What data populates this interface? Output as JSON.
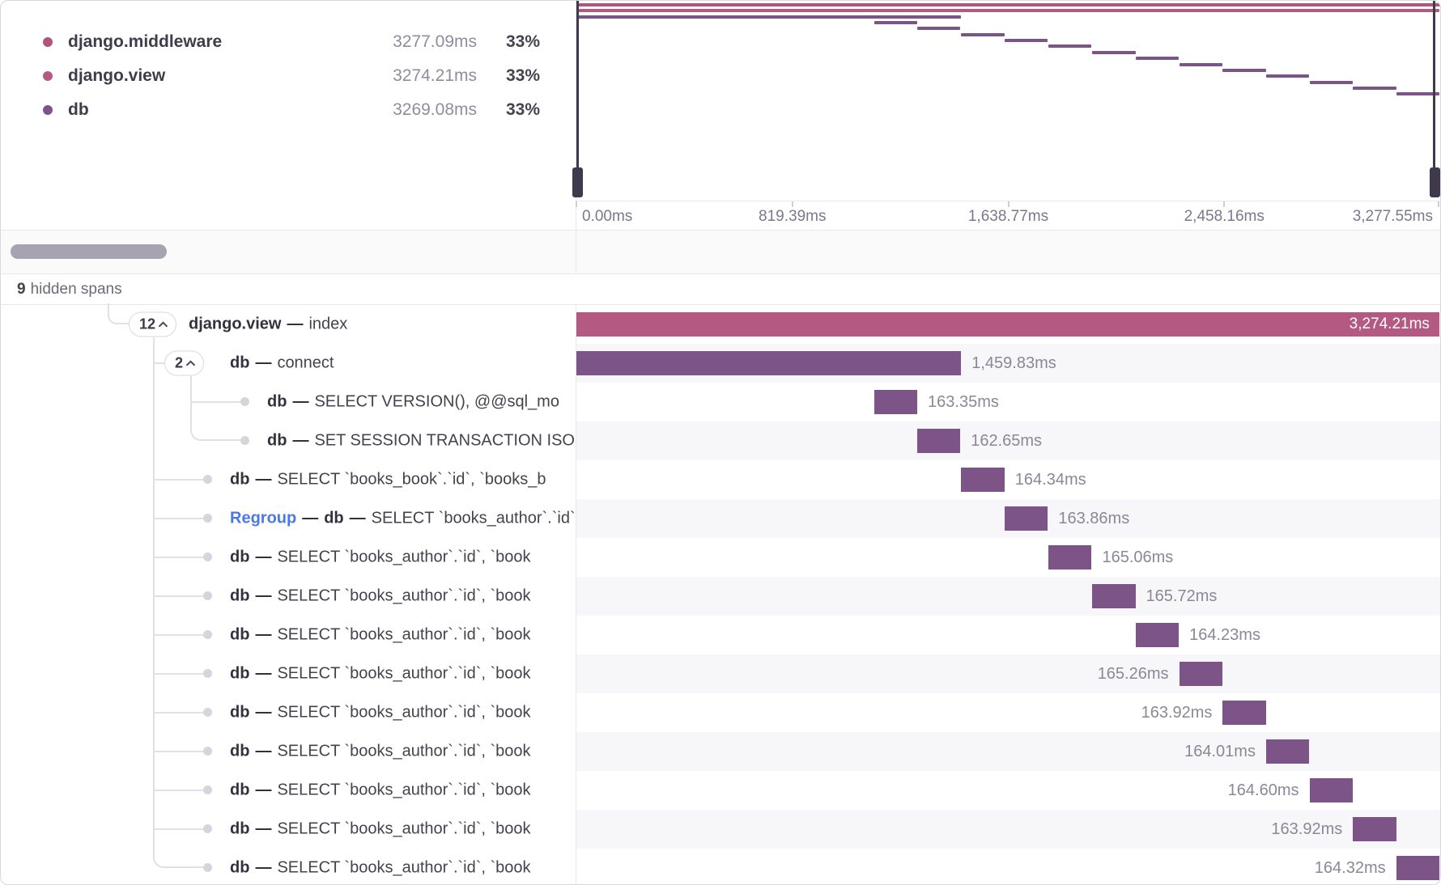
{
  "colors": {
    "middleware": "#b0567b",
    "view": "#b45a82",
    "db": "#7d5488"
  },
  "legend": {
    "rows": [
      {
        "label": "django.middleware",
        "value": "3277.09ms",
        "percent": "33%",
        "color_key": "middleware"
      },
      {
        "label": "django.view",
        "value": "3274.21ms",
        "percent": "33%",
        "color_key": "view"
      },
      {
        "label": "db",
        "value": "3269.08ms",
        "percent": "33%",
        "color_key": "db"
      }
    ]
  },
  "minimap": {
    "total_ms": 3277.55,
    "spans": [
      {
        "start": 0,
        "duration": 3277.09,
        "color_key": "middleware"
      },
      {
        "start": 0,
        "duration": 3274.21,
        "color_key": "view"
      },
      {
        "start": 0,
        "duration": 1459.83,
        "color_key": "db"
      },
      {
        "start": 1130,
        "duration": 163.35,
        "color_key": "db"
      },
      {
        "start": 1294,
        "duration": 162.65,
        "color_key": "db"
      },
      {
        "start": 1460,
        "duration": 164.34,
        "color_key": "db"
      },
      {
        "start": 1625,
        "duration": 163.86,
        "color_key": "db"
      },
      {
        "start": 1790,
        "duration": 165.06,
        "color_key": "db"
      },
      {
        "start": 1955.5,
        "duration": 165.72,
        "color_key": "db"
      },
      {
        "start": 2121.5,
        "duration": 164.23,
        "color_key": "db"
      },
      {
        "start": 2287,
        "duration": 165.26,
        "color_key": "db"
      },
      {
        "start": 2452.5,
        "duration": 163.92,
        "color_key": "db"
      },
      {
        "start": 2617,
        "duration": 164.01,
        "color_key": "db"
      },
      {
        "start": 2781.5,
        "duration": 164.6,
        "color_key": "db"
      },
      {
        "start": 2946.5,
        "duration": 163.92,
        "color_key": "db"
      },
      {
        "start": 3110.5,
        "duration": 164.32,
        "color_key": "db"
      }
    ]
  },
  "axis": {
    "labels": [
      {
        "text": "0.00ms",
        "pos": 0,
        "align": "left"
      },
      {
        "text": "819.39ms",
        "pos": 25,
        "align": "center"
      },
      {
        "text": "1,638.77ms",
        "pos": 50,
        "align": "center"
      },
      {
        "text": "2,458.16ms",
        "pos": 75,
        "align": "center"
      },
      {
        "text": "3,277.55ms",
        "pos": 100,
        "align": "right"
      }
    ]
  },
  "hidden_spans": {
    "count": "9",
    "label": "hidden spans"
  },
  "separator": "—",
  "waterfall": {
    "total_ms": 3277.55,
    "rows": [
      {
        "badge": "12",
        "indent": 0,
        "stub": "none",
        "name": "django.view",
        "detail": "index",
        "start": 0,
        "duration": 3274.21,
        "duration_label": "3,274.21ms",
        "label_pos": "inside",
        "color_key": "view"
      },
      {
        "badge": "2",
        "indent": 1,
        "stub": "a-badge",
        "name": "db",
        "detail": "connect",
        "start": 0,
        "duration": 1459.83,
        "duration_label": "1,459.83ms",
        "label_pos": "right",
        "color_key": "db"
      },
      {
        "dot": true,
        "indent": 2,
        "stub": "b",
        "name": "db",
        "detail": "SELECT VERSION(), @@sql_mo",
        "start": 1130,
        "duration": 163.35,
        "duration_label": "163.35ms",
        "label_pos": "right",
        "color_key": "db"
      },
      {
        "dot": true,
        "indent": 2,
        "stub": "none",
        "name": "db",
        "detail": "SET SESSION TRANSACTION ISOL",
        "start": 1294,
        "duration": 162.65,
        "duration_label": "162.65ms",
        "label_pos": "right",
        "color_key": "db"
      },
      {
        "dot": true,
        "indent": 1,
        "stub": "a",
        "name": "db",
        "detail": "SELECT `books_book`.`id`, `books_b",
        "start": 1460,
        "duration": 164.34,
        "duration_label": "164.34ms",
        "label_pos": "right",
        "color_key": "db"
      },
      {
        "dot": true,
        "indent": 1,
        "stub": "a",
        "prefix": "Regroup",
        "name": "db",
        "detail": "SELECT `books_author`.`id`, `boo",
        "start": 1625,
        "duration": 163.86,
        "duration_label": "163.86ms",
        "label_pos": "right",
        "color_key": "db"
      },
      {
        "dot": true,
        "indent": 1,
        "stub": "a",
        "name": "db",
        "detail": "SELECT `books_author`.`id`, `book",
        "start": 1790,
        "duration": 165.06,
        "duration_label": "165.06ms",
        "label_pos": "right",
        "color_key": "db"
      },
      {
        "dot": true,
        "indent": 1,
        "stub": "a",
        "name": "db",
        "detail": "SELECT `books_author`.`id`, `book",
        "start": 1955.5,
        "duration": 165.72,
        "duration_label": "165.72ms",
        "label_pos": "right",
        "color_key": "db"
      },
      {
        "dot": true,
        "indent": 1,
        "stub": "a",
        "name": "db",
        "detail": "SELECT `books_author`.`id`, `book",
        "start": 2121.5,
        "duration": 164.23,
        "duration_label": "164.23ms",
        "label_pos": "right",
        "color_key": "db"
      },
      {
        "dot": true,
        "indent": 1,
        "stub": "a",
        "name": "db",
        "detail": "SELECT `books_author`.`id`, `book",
        "start": 2287,
        "duration": 165.26,
        "duration_label": "165.26ms",
        "label_pos": "left",
        "color_key": "db"
      },
      {
        "dot": true,
        "indent": 1,
        "stub": "a",
        "name": "db",
        "detail": "SELECT `books_author`.`id`, `book",
        "start": 2452.5,
        "duration": 163.92,
        "duration_label": "163.92ms",
        "label_pos": "left",
        "color_key": "db"
      },
      {
        "dot": true,
        "indent": 1,
        "stub": "a",
        "name": "db",
        "detail": "SELECT `books_author`.`id`, `book",
        "start": 2617,
        "duration": 164.01,
        "duration_label": "164.01ms",
        "label_pos": "left",
        "color_key": "db"
      },
      {
        "dot": true,
        "indent": 1,
        "stub": "a",
        "name": "db",
        "detail": "SELECT `books_author`.`id`, `book",
        "start": 2781.5,
        "duration": 164.6,
        "duration_label": "164.60ms",
        "label_pos": "left",
        "color_key": "db"
      },
      {
        "dot": true,
        "indent": 1,
        "stub": "a",
        "name": "db",
        "detail": "SELECT `books_author`.`id`, `book",
        "start": 2946.5,
        "duration": 163.92,
        "duration_label": "163.92ms",
        "label_pos": "left",
        "color_key": "db"
      },
      {
        "dot": true,
        "indent": 1,
        "stub": "none",
        "name": "db",
        "detail": "SELECT `books_author`.`id`, `book",
        "start": 3110.5,
        "duration": 164.32,
        "duration_label": "164.32ms",
        "label_pos": "left",
        "color_key": "db"
      }
    ]
  }
}
